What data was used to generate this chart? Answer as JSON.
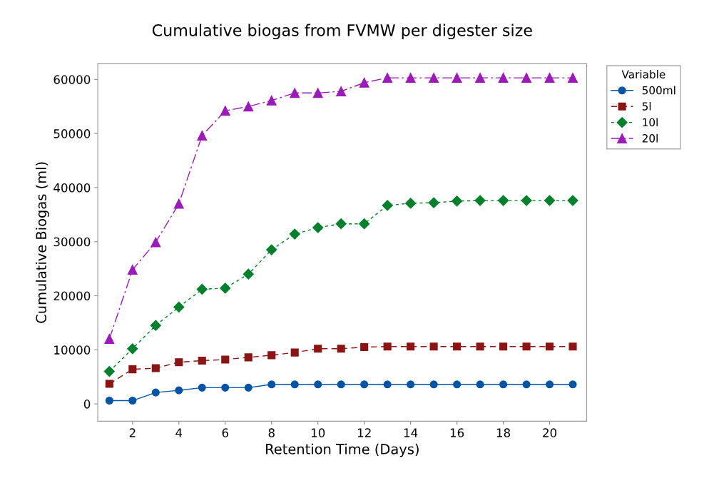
{
  "chart_data": {
    "type": "line",
    "title": "Cumulative biogas from FVMW per digester size",
    "xlabel": "Retention Time (Days)",
    "ylabel": "Cumulative Biogas (ml)",
    "legend_title": "Variable",
    "x": [
      1,
      2,
      3,
      4,
      5,
      6,
      7,
      8,
      9,
      10,
      11,
      12,
      13,
      14,
      15,
      16,
      17,
      18,
      19,
      20,
      21
    ],
    "series": [
      {
        "name": "500ml",
        "color": "#0054a6",
        "marker": "circle",
        "line_style": "solid",
        "values": [
          600,
          600,
          2100,
          2500,
          3000,
          3000,
          3000,
          3600,
          3600,
          3600,
          3600,
          3600,
          3600,
          3600,
          3600,
          3600,
          3600,
          3600,
          3600,
          3600,
          3600
        ]
      },
      {
        "name": "5l",
        "color": "#8b1414",
        "marker": "square",
        "line_style": "dashed",
        "values": [
          3700,
          6400,
          6600,
          7700,
          8000,
          8200,
          8600,
          9000,
          9500,
          10200,
          10200,
          10500,
          10600,
          10600,
          10600,
          10600,
          10600,
          10600,
          10600,
          10600,
          10600
        ]
      },
      {
        "name": "10l",
        "color": "#00802b",
        "marker": "diamond",
        "line_style": "dotted",
        "values": [
          6000,
          10200,
          14500,
          17900,
          21200,
          21400,
          24000,
          28500,
          31400,
          32600,
          33300,
          33300,
          36700,
          37100,
          37200,
          37500,
          37600,
          37600,
          37600,
          37600,
          37600
        ]
      },
      {
        "name": "20l",
        "color": "#9b1ab8",
        "marker": "triangle",
        "line_style": "dashdot",
        "values": [
          12000,
          24800,
          29900,
          37000,
          49600,
          54200,
          55000,
          56100,
          57500,
          57500,
          57800,
          59400,
          60300,
          60300,
          60300,
          60300,
          60300,
          60300,
          60300,
          60300,
          60300
        ]
      }
    ],
    "xlim": [
      0.5,
      21.6
    ],
    "xticks": [
      2,
      4,
      6,
      8,
      10,
      12,
      14,
      16,
      18,
      20
    ],
    "ylim": [
      -3200,
      62900
    ],
    "yticks": [
      0,
      10000,
      20000,
      30000,
      40000,
      50000,
      60000
    ],
    "grid": false,
    "legend": "top right"
  }
}
